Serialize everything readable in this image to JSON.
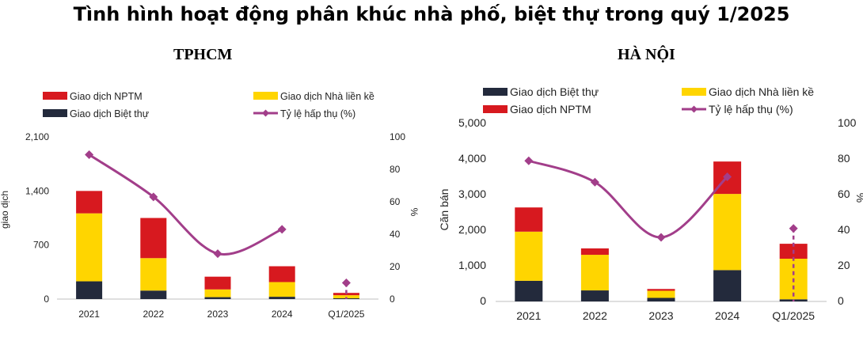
{
  "title": "Tình hình hoạt động phân khúc nhà phố, biệt thự trong quý 1/2025",
  "colors": {
    "nptm": "#d7191f",
    "lienke": "#ffd500",
    "bietthu": "#232a3c",
    "tyle": "#a23e8a"
  },
  "chart_data": [
    {
      "type": "bar",
      "title": "TPHCM",
      "stacked": true,
      "categories": [
        "2021",
        "2022",
        "2023",
        "2024",
        "Q1/2025"
      ],
      "ylabel": "giao dịch",
      "y2label": "%",
      "ylim": [
        0,
        2100
      ],
      "y2lim": [
        0,
        100
      ],
      "yticks": [
        "0",
        "700",
        "1,400",
        "2,100"
      ],
      "y2ticks": [
        "0",
        "20",
        "40",
        "60",
        "80",
        "100"
      ],
      "legend": [
        "Giao dịch NPTM",
        "Giao dịch Nhà liền kề",
        "Giao dịch Biệt thự",
        "Tỷ lệ hấp thụ (%)"
      ],
      "series": [
        {
          "name": "Giao dịch Biệt thự",
          "values": [
            230,
            110,
            25,
            30,
            10
          ]
        },
        {
          "name": "Giao dịch Nhà liền kề",
          "values": [
            880,
            420,
            100,
            190,
            40
          ]
        },
        {
          "name": "Giao dịch NPTM",
          "values": [
            290,
            520,
            165,
            205,
            30
          ]
        },
        {
          "name": "Tỷ lệ hấp thụ (%)",
          "axis": "right",
          "values": [
            89,
            63,
            28,
            43,
            10
          ]
        }
      ]
    },
    {
      "type": "bar",
      "title": "HÀ NỘI",
      "stacked": true,
      "categories": [
        "2021",
        "2022",
        "2023",
        "2024",
        "Q1/2025"
      ],
      "ylabel": "Căn bán",
      "y2label": "%",
      "ylim": [
        0,
        5000
      ],
      "y2lim": [
        0,
        100
      ],
      "yticks": [
        "0",
        "1,000",
        "2,000",
        "3,000",
        "4,000",
        "5,000"
      ],
      "y2ticks": [
        "0",
        "20",
        "40",
        "60",
        "80",
        "100"
      ],
      "legend": [
        "Giao dịch Biệt thự",
        "Giao dịch Nhà liền kề",
        "Giao dịch NPTM",
        "Tỷ lệ hấp thụ (%)"
      ],
      "series": [
        {
          "name": "Giao dịch Biệt thự",
          "values": [
            580,
            310,
            100,
            880,
            60
          ]
        },
        {
          "name": "Giao dịch Nhà liền kề",
          "values": [
            1380,
            1000,
            200,
            2140,
            1140
          ]
        },
        {
          "name": "Giao dịch NPTM",
          "values": [
            680,
            180,
            50,
            910,
            420
          ]
        },
        {
          "name": "Tỷ lệ hấp thụ (%)",
          "axis": "right",
          "values": [
            79,
            67,
            36,
            70,
            41
          ]
        }
      ]
    }
  ]
}
